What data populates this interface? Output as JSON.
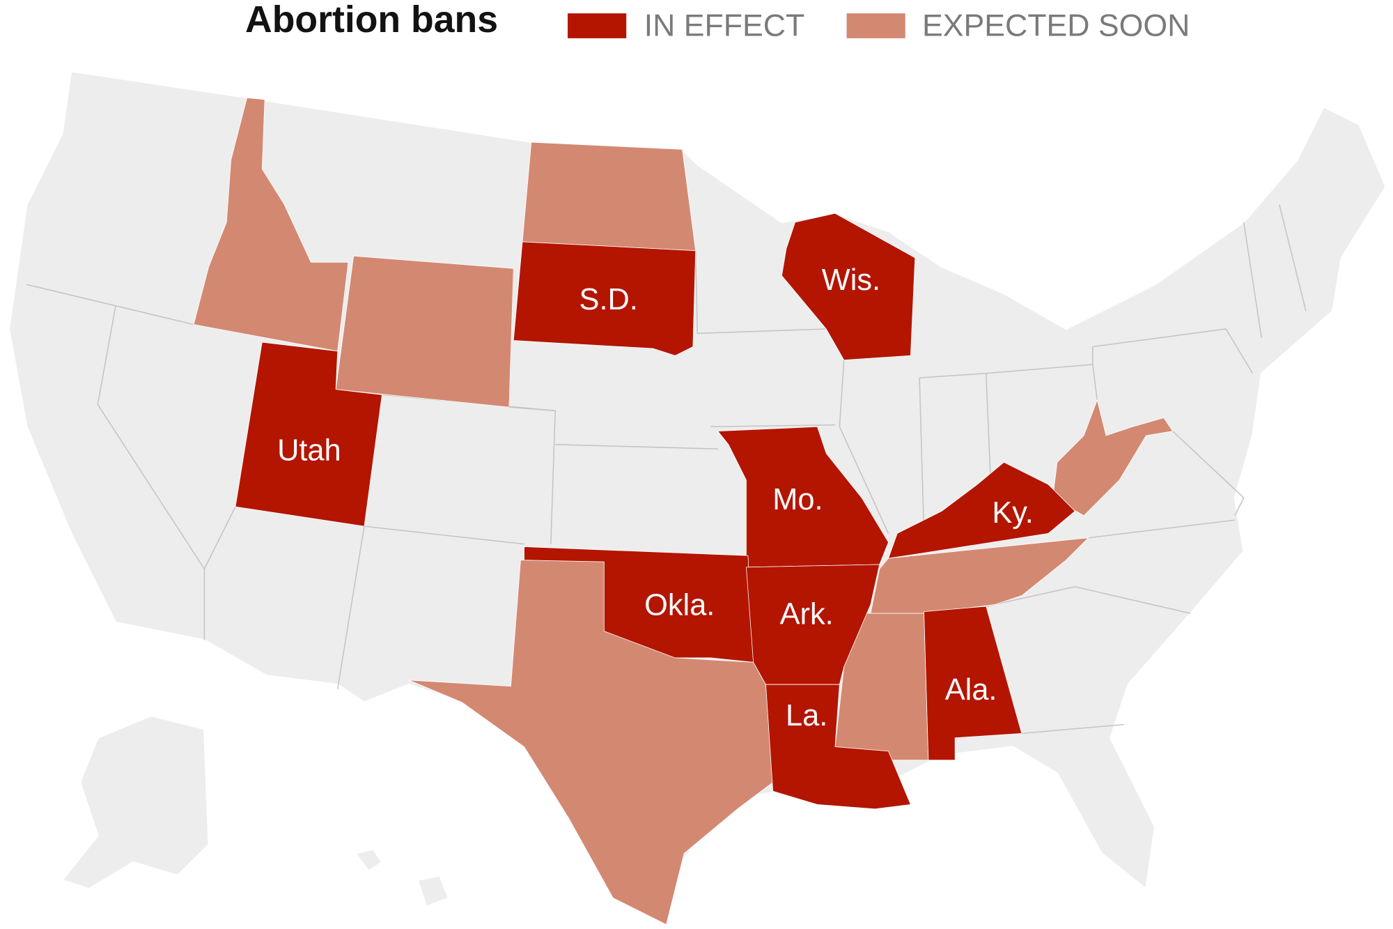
{
  "title": "Abortion bans",
  "legend": [
    {
      "label": "IN EFFECT",
      "color": "#b31500"
    },
    {
      "label": "EXPECTED SOON",
      "color": "#d38872"
    }
  ],
  "state_labels": [
    "Utah",
    "S.D.",
    "Wis.",
    "Mo.",
    "Okla.",
    "Ark.",
    "Ky.",
    "La.",
    "Ala."
  ]
}
